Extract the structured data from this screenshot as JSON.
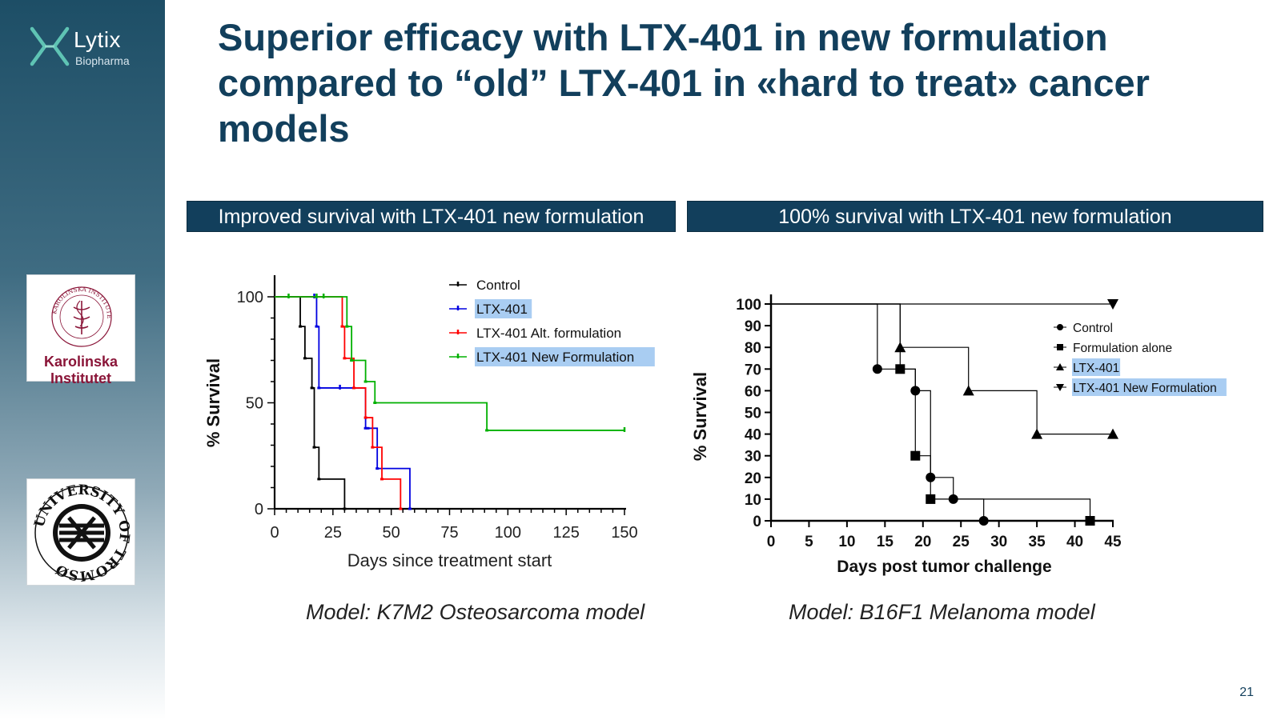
{
  "slide": {
    "title": "Superior efficacy with LTX-401 in new formulation compared to “old” LTX-401 in «hard to treat» cancer models",
    "page_number": "21"
  },
  "branding": {
    "name": "Lytix",
    "subtitle": "Biopharma",
    "ki_line1": "Karolinska",
    "ki_line2": "Institutet",
    "ki_seal_text": "KAROLINSKA INSTITUTET · ANNO 1810",
    "uit_seal_text": "UNIVERSITY OF TROMSØ",
    "brand_color": "#123f5c",
    "ki_color": "#8a1538"
  },
  "panels": [
    {
      "banner": "Improved survival with LTX-401 new formulation",
      "model": "Model: K7M2 Osteosarcoma model"
    },
    {
      "banner": "100% survival with LTX-401 new formulation",
      "model": "Model: B16F1 Melanoma model"
    }
  ],
  "chart_data": [
    {
      "type": "line",
      "step": true,
      "xlabel": "Days since treatment start",
      "ylabel": "% Survival",
      "xlim": [
        0,
        150
      ],
      "ylim": [
        0,
        100
      ],
      "xticks": [
        0,
        25,
        50,
        75,
        100,
        125,
        150
      ],
      "yticks": [
        0,
        50,
        100
      ],
      "legend_position": "top-right",
      "series": [
        {
          "name": "Control",
          "color": "#000000",
          "highlight": false,
          "x": [
            0,
            11,
            13,
            16,
            17,
            19,
            30
          ],
          "y": [
            100,
            86,
            71,
            57,
            29,
            14,
            0
          ],
          "censored_x": [],
          "censored_y": []
        },
        {
          "name": "LTX-401",
          "color": "#0000e0",
          "highlight": true,
          "x": [
            0,
            18,
            19,
            39,
            40,
            44,
            58
          ],
          "y": [
            100,
            86,
            57,
            38,
            38,
            19,
            0
          ],
          "censored_x": [
            17,
            28
          ],
          "censored_y": [
            100,
            57
          ]
        },
        {
          "name": "LTX-401 Alt. formulation",
          "color": "#ff0000",
          "highlight": false,
          "x": [
            0,
            29,
            30,
            34,
            39,
            42,
            46,
            54
          ],
          "y": [
            100,
            86,
            71,
            57,
            43,
            29,
            14,
            0
          ],
          "censored_x": [],
          "censored_y": []
        },
        {
          "name": "LTX-401 New Formulation",
          "color": "#00b000",
          "highlight": true,
          "x": [
            0,
            31,
            33,
            39,
            43,
            91
          ],
          "y": [
            100,
            86,
            70,
            60,
            50,
            37
          ],
          "end_x": 150,
          "censored_x": [
            6,
            18,
            21,
            150
          ],
          "censored_y": [
            100,
            100,
            100,
            37
          ]
        }
      ]
    },
    {
      "type": "line",
      "step": true,
      "xlabel": "Days post tumor challenge",
      "ylabel": "% Survival",
      "xlim": [
        0,
        45
      ],
      "ylim": [
        0,
        100
      ],
      "xticks": [
        0,
        5,
        10,
        15,
        20,
        25,
        30,
        35,
        40,
        45
      ],
      "yticks": [
        0,
        10,
        20,
        30,
        40,
        50,
        60,
        70,
        80,
        90,
        100
      ],
      "legend_position": "top-right",
      "series": [
        {
          "name": "Control",
          "marker": "circle",
          "highlight": false,
          "x": [
            14,
            19,
            21,
            24,
            28
          ],
          "y": [
            70,
            60,
            20,
            10,
            0
          ]
        },
        {
          "name": "Formulation alone",
          "marker": "square",
          "highlight": false,
          "x": [
            17,
            19,
            21,
            42
          ],
          "y": [
            70,
            30,
            10,
            0
          ]
        },
        {
          "name": "LTX-401",
          "marker": "triangle-up",
          "highlight": true,
          "x": [
            17,
            26,
            35,
            45
          ],
          "y": [
            80,
            60,
            40,
            40
          ]
        },
        {
          "name": "LTX-401 New Formulation",
          "marker": "triangle-down",
          "highlight": true,
          "x": [
            45
          ],
          "y": [
            100
          ]
        }
      ]
    }
  ]
}
